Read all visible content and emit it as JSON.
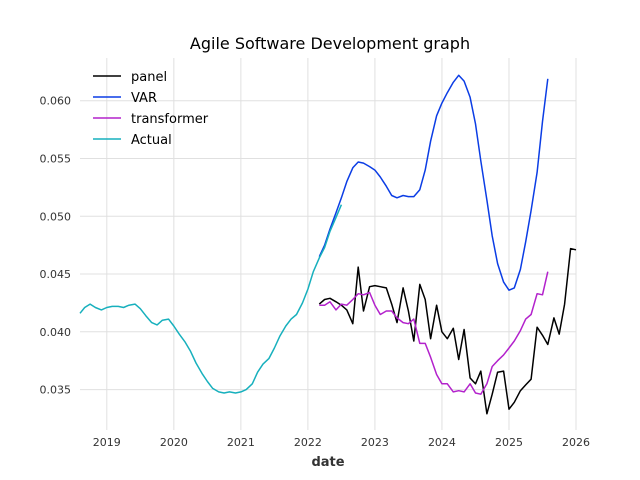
{
  "chart_data": {
    "type": "line",
    "title": "Agile Software Development graph",
    "xlabel": "date",
    "ylabel": "",
    "xlim": [
      2018.6,
      2026.0
    ],
    "ylim": [
      0.0315,
      0.0637
    ],
    "grid": true,
    "legend_position": "top-left",
    "x_ticks": [
      2019,
      2020,
      2021,
      2022,
      2023,
      2024,
      2025,
      2026
    ],
    "x_tick_labels": [
      "2019",
      "2020",
      "2021",
      "2022",
      "2023",
      "2024",
      "2025",
      "2026"
    ],
    "y_ticks": [
      0.035,
      0.04,
      0.045,
      0.05,
      0.055,
      0.06
    ],
    "y_tick_labels": [
      "0.035",
      "0.040",
      "0.045",
      "0.050",
      "0.055",
      "0.060"
    ],
    "series": [
      {
        "name": "panel",
        "color": "#000000",
        "x": [
          2022.17,
          2022.25,
          2022.33,
          2022.42,
          2022.5,
          2022.58,
          2022.67,
          2022.75,
          2022.83,
          2022.92,
          2023.0,
          2023.08,
          2023.17,
          2023.25,
          2023.33,
          2023.42,
          2023.5,
          2023.58,
          2023.67,
          2023.75,
          2023.83,
          2023.92,
          2024.0,
          2024.08,
          2024.17,
          2024.25,
          2024.33,
          2024.42,
          2024.5,
          2024.58,
          2024.67,
          2024.75,
          2024.83,
          2024.92,
          2025.0,
          2025.08,
          2025.17,
          2025.25,
          2025.33,
          2025.42,
          2025.5,
          2025.58,
          2025.67,
          2025.75,
          2025.83,
          2025.92,
          2026.0
        ],
        "values": [
          0.0424,
          0.0428,
          0.0429,
          0.0426,
          0.0423,
          0.0419,
          0.0407,
          0.0456,
          0.0418,
          0.0439,
          0.044,
          0.0439,
          0.0438,
          0.0424,
          0.0408,
          0.0438,
          0.0418,
          0.0392,
          0.0441,
          0.0428,
          0.0394,
          0.0423,
          0.04,
          0.0394,
          0.0403,
          0.0376,
          0.0402,
          0.036,
          0.0355,
          0.0366,
          0.0329,
          0.0346,
          0.0365,
          0.0366,
          0.0333,
          0.0339,
          0.0349,
          0.0354,
          0.0359,
          0.0404,
          0.0397,
          0.0389,
          0.0412,
          0.0398,
          0.0424,
          0.0472,
          0.0471
        ]
      },
      {
        "name": "VAR",
        "color": "#0b3de5",
        "x": [
          2022.17,
          2022.25,
          2022.33,
          2022.42,
          2022.5,
          2022.58,
          2022.67,
          2022.75,
          2022.83,
          2022.92,
          2023.0,
          2023.08,
          2023.17,
          2023.25,
          2023.33,
          2023.42,
          2023.5,
          2023.58,
          2023.67,
          2023.75,
          2023.83,
          2023.92,
          2024.0,
          2024.08,
          2024.17,
          2024.25,
          2024.33,
          2024.42,
          2024.5,
          2024.58,
          2024.67,
          2024.75,
          2024.83,
          2024.92,
          2025.0,
          2025.08,
          2025.17,
          2025.25,
          2025.33,
          2025.42,
          2025.5,
          2025.58
        ],
        "values": [
          0.0465,
          0.0475,
          0.0489,
          0.0503,
          0.0516,
          0.053,
          0.0542,
          0.0547,
          0.0546,
          0.0543,
          0.054,
          0.0534,
          0.0526,
          0.0518,
          0.0516,
          0.0518,
          0.0517,
          0.0517,
          0.0523,
          0.054,
          0.0565,
          0.0587,
          0.0598,
          0.0607,
          0.0616,
          0.0622,
          0.0617,
          0.0603,
          0.058,
          0.0548,
          0.0514,
          0.0483,
          0.0459,
          0.0443,
          0.0436,
          0.0438,
          0.0454,
          0.0478,
          0.0505,
          0.0538,
          0.0582,
          0.0619
        ]
      },
      {
        "name": "transformer",
        "color": "#b322cc",
        "x": [
          2022.17,
          2022.25,
          2022.33,
          2022.42,
          2022.5,
          2022.58,
          2022.67,
          2022.75,
          2022.83,
          2022.92,
          2023.0,
          2023.08,
          2023.17,
          2023.25,
          2023.33,
          2023.42,
          2023.5,
          2023.58,
          2023.67,
          2023.75,
          2023.83,
          2023.92,
          2024.0,
          2024.08,
          2024.17,
          2024.25,
          2024.33,
          2024.42,
          2024.5,
          2024.58,
          2024.67,
          2024.75,
          2024.83,
          2024.92,
          2025.0,
          2025.08,
          2025.17,
          2025.25,
          2025.33,
          2025.42,
          2025.5,
          2025.58
        ],
        "values": [
          0.0423,
          0.0423,
          0.0426,
          0.0419,
          0.0424,
          0.0423,
          0.0428,
          0.0433,
          0.0432,
          0.0434,
          0.0423,
          0.0415,
          0.0418,
          0.0418,
          0.0412,
          0.0408,
          0.0407,
          0.0411,
          0.039,
          0.039,
          0.0378,
          0.0363,
          0.0355,
          0.0355,
          0.0348,
          0.0349,
          0.0348,
          0.0355,
          0.0347,
          0.0346,
          0.0355,
          0.037,
          0.0375,
          0.038,
          0.0386,
          0.0392,
          0.0401,
          0.0411,
          0.0415,
          0.0433,
          0.0432,
          0.0452
        ]
      },
      {
        "name": "Actual",
        "color": "#17b0bd",
        "x": [
          2018.6,
          2018.67,
          2018.75,
          2018.83,
          2018.92,
          2019.0,
          2019.08,
          2019.17,
          2019.25,
          2019.33,
          2019.42,
          2019.5,
          2019.58,
          2019.67,
          2019.75,
          2019.83,
          2019.92,
          2020.0,
          2020.08,
          2020.17,
          2020.25,
          2020.33,
          2020.42,
          2020.5,
          2020.58,
          2020.67,
          2020.75,
          2020.83,
          2020.92,
          2021.0,
          2021.08,
          2021.17,
          2021.25,
          2021.33,
          2021.42,
          2021.5,
          2021.58,
          2021.67,
          2021.75,
          2021.83,
          2021.92,
          2022.0,
          2022.08,
          2022.17,
          2022.25,
          2022.33,
          2022.42,
          2022.5
        ],
        "values": [
          0.0416,
          0.0421,
          0.0424,
          0.0421,
          0.0419,
          0.0421,
          0.0422,
          0.0422,
          0.0421,
          0.0423,
          0.0424,
          0.042,
          0.0414,
          0.0408,
          0.0406,
          0.041,
          0.0411,
          0.0405,
          0.0398,
          0.0391,
          0.0383,
          0.0373,
          0.0364,
          0.0357,
          0.0351,
          0.0348,
          0.0347,
          0.0348,
          0.0347,
          0.0348,
          0.035,
          0.0355,
          0.0365,
          0.0372,
          0.0377,
          0.0386,
          0.0396,
          0.0405,
          0.0411,
          0.0415,
          0.0425,
          0.0437,
          0.0452,
          0.0464,
          0.0473,
          0.0487,
          0.0499,
          0.051
        ]
      }
    ]
  }
}
